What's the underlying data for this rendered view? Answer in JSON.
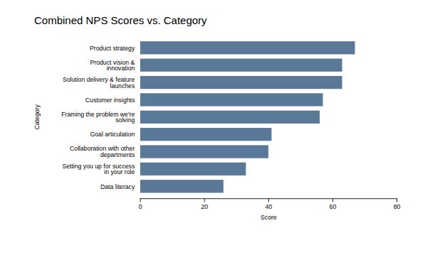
{
  "chart_data": {
    "type": "bar",
    "orientation": "horizontal",
    "title": "Combined NPS Scores vs. Category",
    "categories": [
      "Data literacy",
      "Setting you up for success\nin your role",
      "Collaboration with other\ndepartments",
      "Goal articulation",
      "Framing the problem we're\nsolving",
      "Customer insights",
      "Solution delivery & feature\nlaunches",
      "Product vision &\ninnovation",
      "Product strategy"
    ],
    "values": [
      26,
      33,
      40,
      41,
      56,
      57,
      63,
      63,
      67
    ],
    "color": "#5a7898",
    "xlabel": "Score",
    "ylabel": "Category",
    "xlim": [
      0,
      80
    ],
    "xticks": [
      0,
      20,
      40,
      60,
      80
    ]
  }
}
